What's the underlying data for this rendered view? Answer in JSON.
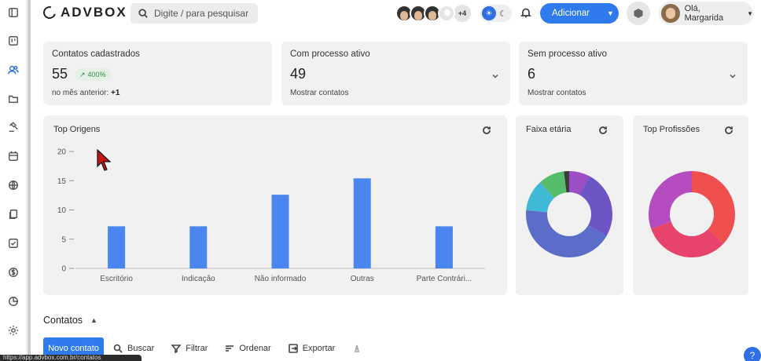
{
  "header": {
    "brand": "ADVBOX",
    "search_placeholder": "Digite / para pesquisar",
    "avatars_more": "+4",
    "add_button": "Adicionar",
    "user_greeting": "Olá, Margarida"
  },
  "sidebar": {
    "items": [
      {
        "icon": "layout-icon"
      },
      {
        "icon": "kanban-icon"
      },
      {
        "icon": "contacts-icon",
        "active": true
      },
      {
        "icon": "folder-icon"
      },
      {
        "icon": "gavel-icon"
      },
      {
        "icon": "calendar-icon"
      },
      {
        "icon": "globe-icon"
      },
      {
        "icon": "documents-icon"
      },
      {
        "icon": "task-check-icon"
      },
      {
        "icon": "dollar-icon"
      },
      {
        "icon": "pie-chart-icon"
      },
      {
        "icon": "settings-icon"
      }
    ]
  },
  "stats": {
    "registered": {
      "label": "Contatos cadastrados",
      "value": "55",
      "badge": "400%",
      "sub_prefix": "no mês anterior:",
      "sub_value": "+1"
    },
    "active": {
      "label": "Com processo ativo",
      "value": "49",
      "link": "Mostrar contatos"
    },
    "inactive": {
      "label": "Sem processo ativo",
      "value": "6",
      "link": "Mostrar contatos"
    }
  },
  "charts": {
    "origins_title": "Top Origens",
    "age_title": "Faixa etária",
    "prof_title": "Top Profissões"
  },
  "chart_data": [
    {
      "type": "bar",
      "title": "Top Origens",
      "categories": [
        "Escritório",
        "Indicação",
        "Não informado",
        "Outras",
        "Parte Contrári..."
      ],
      "values": [
        7.2,
        7.2,
        12.6,
        15.4,
        7.2
      ],
      "ylim": [
        0,
        20
      ],
      "yticks": [
        0,
        5,
        10,
        15,
        20
      ],
      "color": "#4a86f0"
    },
    {
      "type": "pie",
      "title": "Faixa etária",
      "donut": true,
      "slices": [
        {
          "value": 4,
          "color": "#9c4ec4"
        },
        {
          "value": 13,
          "color": "#6e55c6"
        },
        {
          "value": 22,
          "color": "#5c6cc9"
        },
        {
          "value": 6,
          "color": "#3fb9d6"
        },
        {
          "value": 5,
          "color": "#55bd6a"
        },
        {
          "value": 1,
          "color": "#3c3c3c"
        }
      ]
    },
    {
      "type": "pie",
      "title": "Top Profissões",
      "donut": true,
      "slices": [
        {
          "value": 17,
          "color": "#ef4f4f"
        },
        {
          "value": 15,
          "color": "#e8436b"
        },
        {
          "value": 14,
          "color": "#b44bbf"
        }
      ]
    }
  ],
  "contacts": {
    "title": "Contatos",
    "new_button": "Novo contato",
    "search": "Buscar",
    "filter": "Filtrar",
    "order": "Ordenar",
    "export": "Exportar"
  },
  "statusbar": {
    "url": "https://app.advbox.com.br/contatos"
  },
  "help": {
    "label": "?"
  }
}
